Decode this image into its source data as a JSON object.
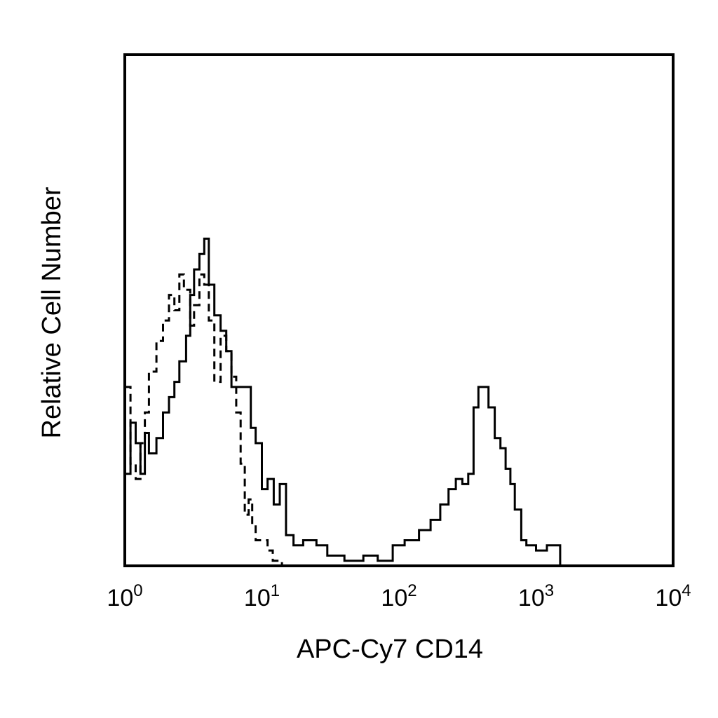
{
  "chart_data": {
    "type": "line",
    "title": "",
    "xlabel": "APC-Cy7 CD14",
    "ylabel": "Relative Cell Number",
    "x_scale": "log",
    "xlim": [
      1,
      10000
    ],
    "ylim": [
      0,
      100
    ],
    "grid": false,
    "legend": "none",
    "x_ticks": [
      {
        "value": 1,
        "base": "10",
        "exp": "0"
      },
      {
        "value": 10,
        "base": "10",
        "exp": "1"
      },
      {
        "value": 100,
        "base": "10",
        "exp": "2"
      },
      {
        "value": 1000,
        "base": "10",
        "exp": "3"
      },
      {
        "value": 10000,
        "base": "10",
        "exp": "4"
      }
    ],
    "series": [
      {
        "style": "solid",
        "color": "#000000",
        "x": [
          1.0,
          1.1,
          1.2,
          1.3,
          1.4,
          1.5,
          1.7,
          1.9,
          2.1,
          2.3,
          2.5,
          2.8,
          3.0,
          3.2,
          3.5,
          3.8,
          4.1,
          4.5,
          5.0,
          5.5,
          6.0,
          6.5,
          7.0,
          7.6,
          8.3,
          9.0,
          10.0,
          11.0,
          12.2,
          13.5,
          15.0,
          17.0,
          20.0,
          25.0,
          30.0,
          40.0,
          55.0,
          70.0,
          90.0,
          110.0,
          140.0,
          170.0,
          200.0,
          230.0,
          260.0,
          290.0,
          320.0,
          350.0,
          380.0,
          410.0,
          450.0,
          500.0,
          550.0,
          600.0,
          650.0,
          700.0,
          780.0,
          850.0,
          1000.0,
          1200.0,
          1500.0,
          1800.0,
          3000.0,
          10000.0
        ],
        "values": [
          18,
          28,
          24,
          18,
          26,
          22,
          25,
          30,
          33,
          36,
          40,
          45,
          53,
          58,
          61,
          64,
          55,
          49,
          46,
          42,
          35,
          35,
          35,
          35,
          27,
          24,
          15,
          17,
          12,
          16,
          6,
          4,
          5,
          4,
          2,
          1,
          2,
          1,
          4,
          5,
          7,
          9,
          12,
          15,
          17,
          16,
          18,
          31,
          35,
          35,
          31,
          25,
          23,
          19,
          16,
          11,
          5,
          4,
          3,
          4,
          0,
          0,
          0,
          0
        ]
      },
      {
        "style": "dashed",
        "color": "#000000",
        "x": [
          1.0,
          1.1,
          1.2,
          1.3,
          1.4,
          1.5,
          1.7,
          1.9,
          2.1,
          2.3,
          2.5,
          2.7,
          3.0,
          3.2,
          3.5,
          3.8,
          4.1,
          4.5,
          5.0,
          5.5,
          6.0,
          6.5,
          7.0,
          7.5,
          8.0,
          8.5,
          9.0,
          10.0,
          11.0,
          12.0,
          14.0,
          17.0,
          25.0,
          100.0,
          1000.0,
          10000.0
        ],
        "values": [
          35,
          20,
          17,
          24,
          30,
          38,
          44,
          48,
          53,
          50,
          57,
          54,
          47,
          51,
          57,
          55,
          48,
          36,
          45,
          42,
          37,
          30,
          20,
          10,
          13,
          8,
          5,
          5,
          3,
          1,
          0,
          0,
          0,
          0,
          0,
          0
        ]
      }
    ]
  }
}
